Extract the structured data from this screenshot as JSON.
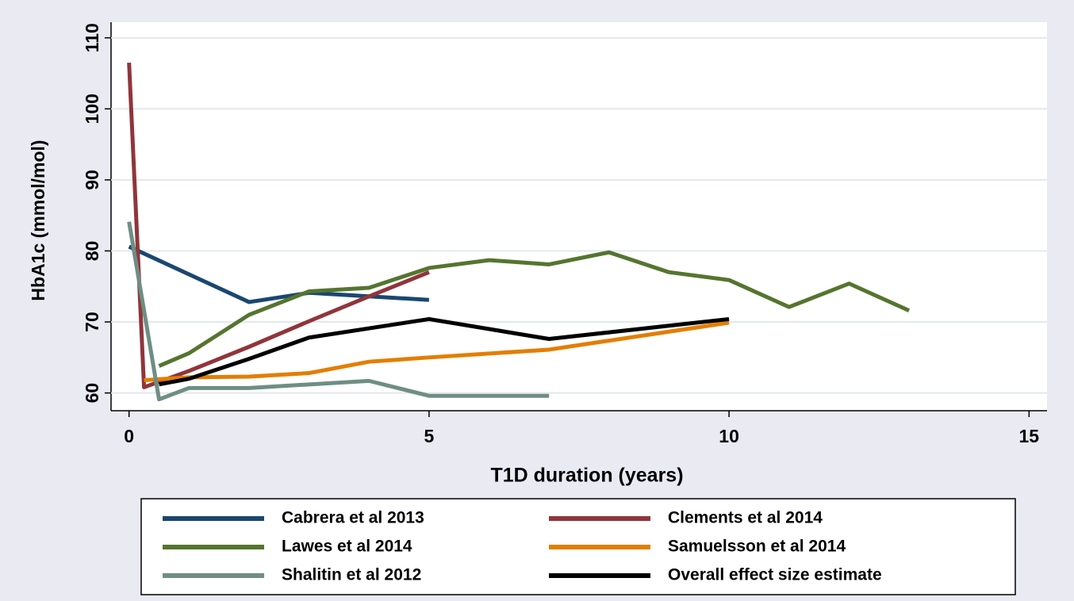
{
  "chart_data": {
    "type": "line",
    "x_label": "T1D duration (years)",
    "y_label": "HbA1c (mmol/mol)",
    "xlim": [
      -0.3,
      15.3
    ],
    "ylim": [
      57.5,
      112.2
    ],
    "xticks": [
      0,
      5,
      10,
      15
    ],
    "yticks": [
      60,
      70,
      80,
      90,
      100,
      110
    ],
    "grid": true,
    "legend": "bottom",
    "series": [
      {
        "name": "Cabrera et al 2013",
        "color": "#1a476f",
        "x": [
          0,
          2,
          3,
          5
        ],
        "values": [
          80.6,
          72.8,
          74.1,
          73.1
        ]
      },
      {
        "name": "Clements et al 2014",
        "color": "#90353b",
        "x": [
          0,
          0.25,
          1,
          2,
          3,
          4,
          5
        ],
        "values": [
          106.5,
          60.8,
          63.1,
          66.5,
          70.1,
          73.6,
          77.0
        ]
      },
      {
        "name": "Lawes et al 2014",
        "color": "#55752f",
        "x": [
          0.5,
          1,
          2,
          3,
          4,
          5,
          6,
          7,
          8,
          9,
          10,
          11,
          12,
          13
        ],
        "values": [
          63.8,
          65.6,
          71.0,
          74.3,
          74.8,
          77.6,
          78.7,
          78.1,
          79.8,
          77.0,
          75.9,
          72.1,
          75.4,
          71.6
        ]
      },
      {
        "name": "Samuelsson et al 2014",
        "color": "#e37e00",
        "x": [
          0.25,
          1,
          2,
          3,
          4,
          5,
          7,
          10
        ],
        "values": [
          61.8,
          62.2,
          62.3,
          62.8,
          64.4,
          65.0,
          66.1,
          69.9
        ]
      },
      {
        "name": "Shalitin et al 2012",
        "color": "#6e8e84",
        "x": [
          0,
          0.5,
          1,
          2,
          3,
          4,
          5,
          7
        ],
        "values": [
          84.1,
          59.1,
          60.7,
          60.7,
          61.2,
          61.7,
          59.6,
          59.6
        ]
      },
      {
        "name": "Overall effect size estimate",
        "color": "#000000",
        "x": [
          0.5,
          1,
          2,
          3,
          5,
          7,
          10
        ],
        "values": [
          61.2,
          62.0,
          64.8,
          67.8,
          70.4,
          67.6,
          70.4
        ]
      }
    ]
  }
}
